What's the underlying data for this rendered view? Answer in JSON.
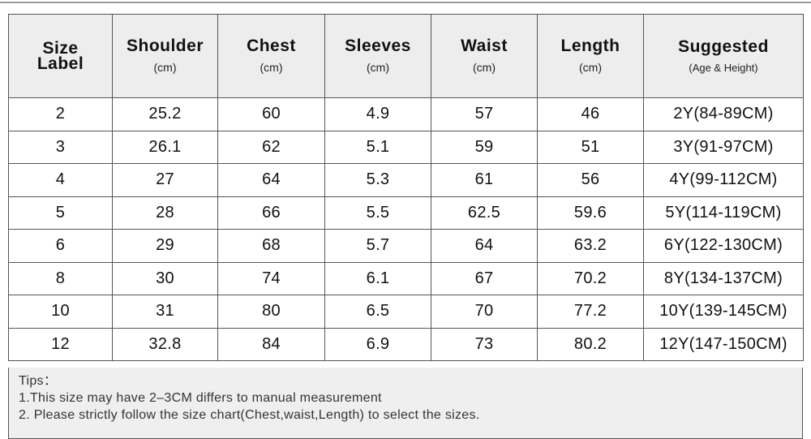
{
  "table": {
    "columns": [
      {
        "title": "Size\nLabel"
      },
      {
        "title": "Shoulder",
        "unit": "(cm)"
      },
      {
        "title": "Chest",
        "unit": "(cm)"
      },
      {
        "title": "Sleeves",
        "unit": "(cm)"
      },
      {
        "title": "Waist",
        "unit": "(cm)"
      },
      {
        "title": "Length",
        "unit": "(cm)"
      },
      {
        "title": "Suggested",
        "unit": "(Age & Height)"
      }
    ],
    "rows": [
      [
        "2",
        "25.2",
        "60",
        "4.9",
        "57",
        "46",
        "2Y(84-89CM)"
      ],
      [
        "3",
        "26.1",
        "62",
        "5.1",
        "59",
        "51",
        "3Y(91-97CM)"
      ],
      [
        "4",
        "27",
        "64",
        "5.3",
        "61",
        "56",
        "4Y(99-112CM)"
      ],
      [
        "5",
        "28",
        "66",
        "5.5",
        "62.5",
        "59.6",
        "5Y(114-119CM)"
      ],
      [
        "6",
        "29",
        "68",
        "5.7",
        "64",
        "63.2",
        "6Y(122-130CM)"
      ],
      [
        "8",
        "30",
        "74",
        "6.1",
        "67",
        "70.2",
        "8Y(134-137CM)"
      ],
      [
        "10",
        "31",
        "80",
        "6.5",
        "70",
        "77.2",
        "10Y(139-145CM)"
      ],
      [
        "12",
        "32.8",
        "84",
        "6.9",
        "73",
        "80.2",
        "12Y(147-150CM)"
      ]
    ]
  },
  "tips": {
    "title": "Tips：",
    "lines": [
      "1.This size may have 2–3CM differs to manual measurement",
      "2. Please strictly follow the size chart(Chest,waist,Length) to select the sizes."
    ]
  }
}
